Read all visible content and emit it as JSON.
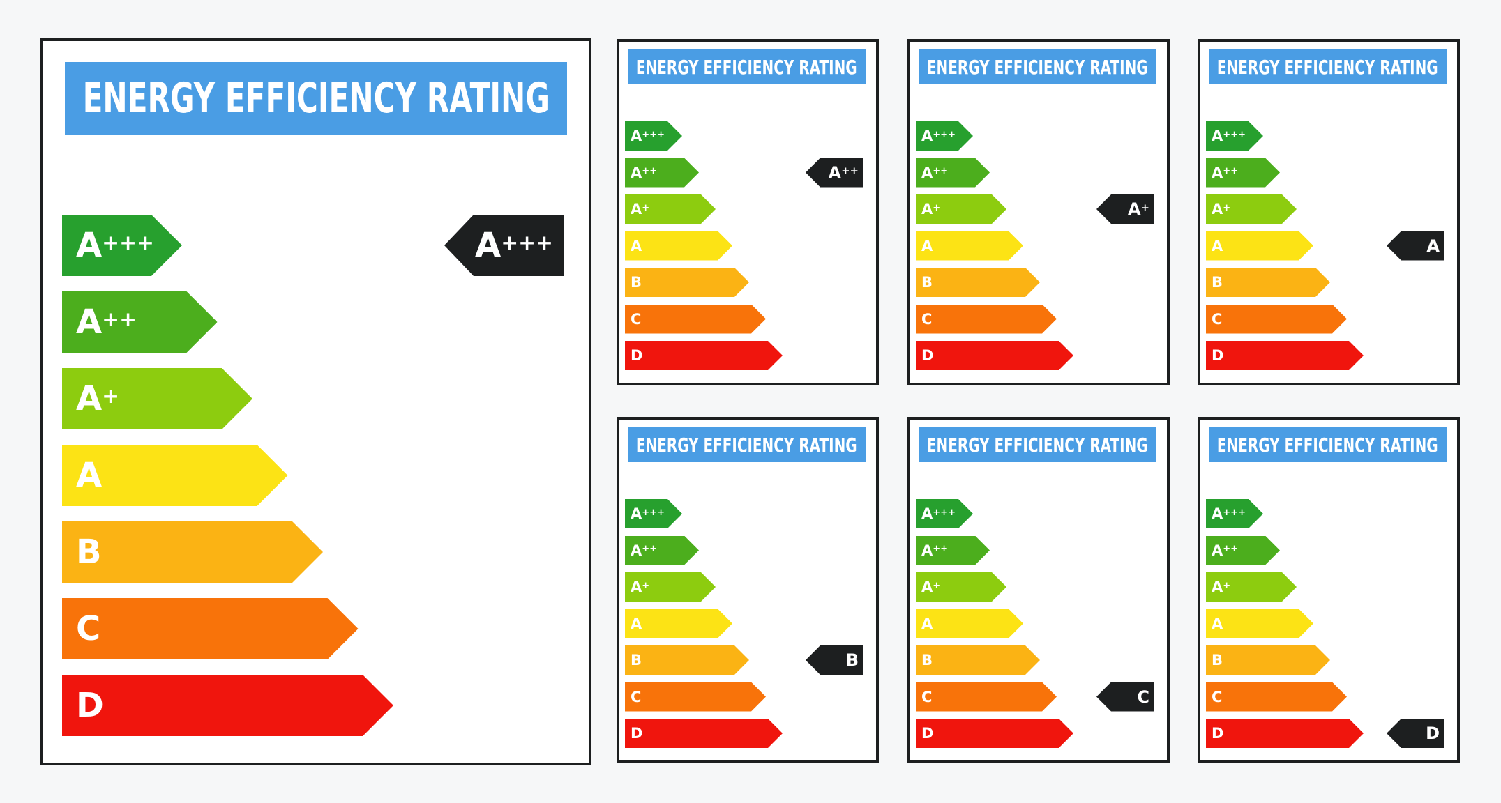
{
  "labels": [
    {
      "id": "large",
      "title": "ENERGY EFFICIENCY RATING",
      "classes": [
        {
          "base": "A",
          "sup": "+++",
          "color": "#27a02e"
        },
        {
          "base": "A",
          "sup": "++",
          "color": "#4cae1d"
        },
        {
          "base": "A",
          "sup": "+",
          "color": "#8dcc0f"
        },
        {
          "base": "A",
          "sup": "",
          "color": "#fce315"
        },
        {
          "base": "B",
          "sup": "",
          "color": "#fbb314"
        },
        {
          "base": "C",
          "sup": "",
          "color": "#f8730a"
        },
        {
          "base": "D",
          "sup": "",
          "color": "#f0150d"
        }
      ],
      "rating": {
        "base": "A",
        "sup": "+++"
      }
    },
    {
      "id": "small-1",
      "title": "ENERGY EFFICIENCY RATING",
      "classes": [
        {
          "base": "A",
          "sup": "+++",
          "color": "#27a02e"
        },
        {
          "base": "A",
          "sup": "++",
          "color": "#4cae1d"
        },
        {
          "base": "A",
          "sup": "+",
          "color": "#8dcc0f"
        },
        {
          "base": "A",
          "sup": "",
          "color": "#fce315"
        },
        {
          "base": "B",
          "sup": "",
          "color": "#fbb314"
        },
        {
          "base": "C",
          "sup": "",
          "color": "#f8730a"
        },
        {
          "base": "D",
          "sup": "",
          "color": "#f0150d"
        }
      ],
      "rating": {
        "base": "A",
        "sup": "++"
      }
    },
    {
      "id": "small-2",
      "title": "ENERGY EFFICIENCY RATING",
      "classes": [
        {
          "base": "A",
          "sup": "+++",
          "color": "#27a02e"
        },
        {
          "base": "A",
          "sup": "++",
          "color": "#4cae1d"
        },
        {
          "base": "A",
          "sup": "+",
          "color": "#8dcc0f"
        },
        {
          "base": "A",
          "sup": "",
          "color": "#fce315"
        },
        {
          "base": "B",
          "sup": "",
          "color": "#fbb314"
        },
        {
          "base": "C",
          "sup": "",
          "color": "#f8730a"
        },
        {
          "base": "D",
          "sup": "",
          "color": "#f0150d"
        }
      ],
      "rating": {
        "base": "A",
        "sup": "+"
      }
    },
    {
      "id": "small-3",
      "title": "ENERGY EFFICIENCY RATING",
      "classes": [
        {
          "base": "A",
          "sup": "+++",
          "color": "#27a02e"
        },
        {
          "base": "A",
          "sup": "++",
          "color": "#4cae1d"
        },
        {
          "base": "A",
          "sup": "+",
          "color": "#8dcc0f"
        },
        {
          "base": "A",
          "sup": "",
          "color": "#fce315"
        },
        {
          "base": "B",
          "sup": "",
          "color": "#fbb314"
        },
        {
          "base": "C",
          "sup": "",
          "color": "#f8730a"
        },
        {
          "base": "D",
          "sup": "",
          "color": "#f0150d"
        }
      ],
      "rating": {
        "base": "A",
        "sup": ""
      }
    },
    {
      "id": "small-4",
      "title": "ENERGY EFFICIENCY RATING",
      "classes": [
        {
          "base": "A",
          "sup": "+++",
          "color": "#27a02e"
        },
        {
          "base": "A",
          "sup": "++",
          "color": "#4cae1d"
        },
        {
          "base": "A",
          "sup": "+",
          "color": "#8dcc0f"
        },
        {
          "base": "A",
          "sup": "",
          "color": "#fce315"
        },
        {
          "base": "B",
          "sup": "",
          "color": "#fbb314"
        },
        {
          "base": "C",
          "sup": "",
          "color": "#f8730a"
        },
        {
          "base": "D",
          "sup": "",
          "color": "#f0150d"
        }
      ],
      "rating": {
        "base": "B",
        "sup": ""
      }
    },
    {
      "id": "small-5",
      "title": "ENERGY EFFICIENCY RATING",
      "classes": [
        {
          "base": "A",
          "sup": "+++",
          "color": "#27a02e"
        },
        {
          "base": "A",
          "sup": "++",
          "color": "#4cae1d"
        },
        {
          "base": "A",
          "sup": "+",
          "color": "#8dcc0f"
        },
        {
          "base": "A",
          "sup": "",
          "color": "#fce315"
        },
        {
          "base": "B",
          "sup": "",
          "color": "#fbb314"
        },
        {
          "base": "C",
          "sup": "",
          "color": "#f8730a"
        },
        {
          "base": "D",
          "sup": "",
          "color": "#f0150d"
        }
      ],
      "rating": {
        "base": "C",
        "sup": ""
      }
    },
    {
      "id": "small-6",
      "title": "ENERGY EFFICIENCY RATING",
      "classes": [
        {
          "base": "A",
          "sup": "+++",
          "color": "#27a02e"
        },
        {
          "base": "A",
          "sup": "++",
          "color": "#4cae1d"
        },
        {
          "base": "A",
          "sup": "+",
          "color": "#8dcc0f"
        },
        {
          "base": "A",
          "sup": "",
          "color": "#fce315"
        },
        {
          "base": "B",
          "sup": "",
          "color": "#fbb314"
        },
        {
          "base": "C",
          "sup": "",
          "color": "#f8730a"
        },
        {
          "base": "D",
          "sup": "",
          "color": "#f0150d"
        }
      ],
      "rating": {
        "base": "D",
        "sup": ""
      }
    }
  ],
  "colors": {
    "header": "#4a9de4",
    "marker": "#1d1f20",
    "border": "#1d1f20",
    "background": "#f6f7f8"
  }
}
